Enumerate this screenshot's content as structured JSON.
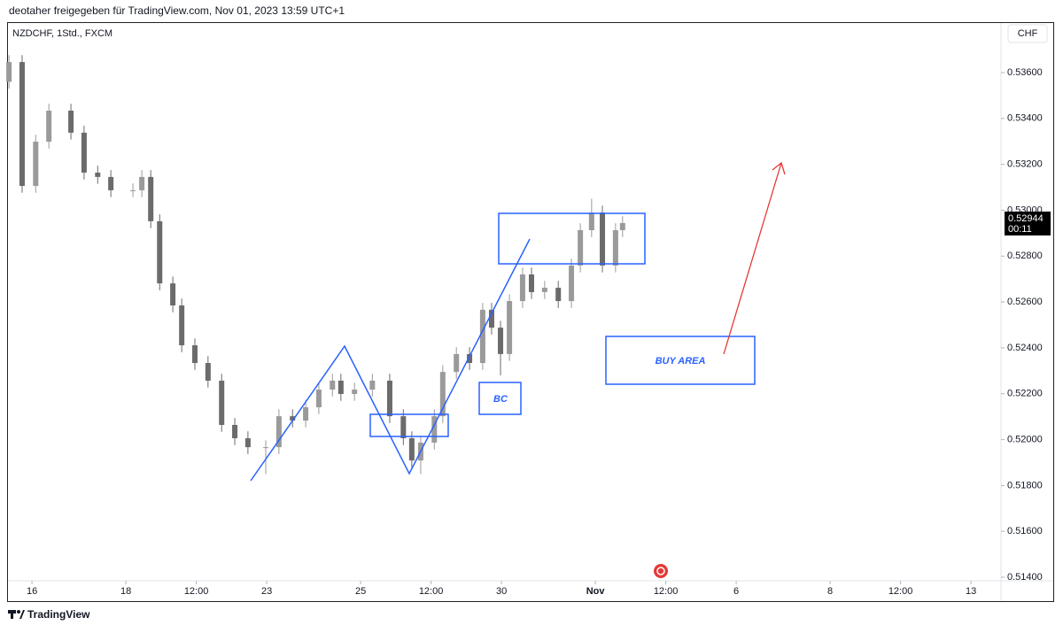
{
  "header": {
    "text": "deotaher freigegeben für TradingView.com, Nov 01, 2023 13:59 UTC+1"
  },
  "chart_data": {
    "type": "candlestick",
    "title": "NZDCHF, 1Std., FXCM",
    "currency": "CHF",
    "x": [
      -0.49,
      -0.21,
      0.08,
      0.36,
      0.83,
      1.11,
      1.4,
      1.68,
      2.15,
      2.34,
      2.53,
      2.72,
      3.0,
      3.19,
      3.47,
      3.75,
      4.04,
      4.32,
      4.6,
      4.98,
      5.26,
      5.55,
      5.83,
      6.11,
      6.4,
      6.58,
      6.87,
      7.25,
      7.62,
      7.91,
      8.09,
      8.28,
      8.57,
      8.75,
      9.04,
      9.32,
      9.6,
      9.79,
      9.98,
      10.17,
      10.45,
      10.64,
      10.92,
      11.21,
      11.49,
      11.68,
      11.92,
      12.15,
      12.43,
      12.58
    ],
    "open": [
      0.5356,
      0.53646,
      0.53106,
      0.53299,
      0.53434,
      0.53338,
      0.53164,
      0.53145,
      0.53087,
      0.53087,
      0.53145,
      0.52952,
      0.52681,
      0.52585,
      0.52411,
      0.52334,
      0.52257,
      0.52064,
      0.52006,
      0.51967,
      0.51967,
      0.52102,
      0.52083,
      0.52141,
      0.52218,
      0.52257,
      0.52199,
      0.52218,
      0.52257,
      0.52102,
      0.52006,
      0.51909,
      0.51987,
      0.52102,
      0.52295,
      0.52373,
      0.52334,
      0.52566,
      0.52488,
      0.52373,
      0.52604,
      0.5272,
      0.52643,
      0.52662,
      0.52604,
      0.52759,
      0.52913,
      0.5299,
      0.52759,
      0.52913
    ],
    "high": [
      0.53676,
      0.53676,
      0.53329,
      0.53464,
      0.53464,
      0.53368,
      0.53194,
      0.53175,
      0.53117,
      0.53175,
      0.53175,
      0.52982,
      0.52711,
      0.52615,
      0.52441,
      0.52364,
      0.52287,
      0.52094,
      0.52036,
      0.51997,
      0.52132,
      0.52132,
      0.52171,
      0.52248,
      0.52287,
      0.52287,
      0.52248,
      0.52287,
      0.52287,
      0.52132,
      0.52036,
      0.52017,
      0.52132,
      0.52325,
      0.52403,
      0.52403,
      0.52596,
      0.52596,
      0.52518,
      0.52634,
      0.5275,
      0.5275,
      0.52692,
      0.52692,
      0.52789,
      0.52943,
      0.5305,
      0.5302,
      0.52943,
      0.52974
    ],
    "low": [
      0.5353,
      0.53076,
      0.53076,
      0.53269,
      0.53308,
      0.53134,
      0.53115,
      0.53057,
      0.53057,
      0.53057,
      0.52922,
      0.52651,
      0.52555,
      0.52381,
      0.52304,
      0.52227,
      0.52034,
      0.51976,
      0.51937,
      0.5185,
      0.51937,
      0.52053,
      0.52053,
      0.52111,
      0.52188,
      0.52169,
      0.52169,
      0.52188,
      0.52072,
      0.51976,
      0.51879,
      0.5185,
      0.51957,
      0.52072,
      0.52265,
      0.52304,
      0.52304,
      0.52458,
      0.5228,
      0.52343,
      0.52574,
      0.52613,
      0.52613,
      0.52574,
      0.52574,
      0.52729,
      0.52883,
      0.52729,
      0.52729,
      0.52883
    ],
    "close": [
      0.53646,
      0.53106,
      0.53299,
      0.53434,
      0.53338,
      0.53164,
      0.53145,
      0.53087,
      0.53087,
      0.53145,
      0.52952,
      0.52681,
      0.52585,
      0.52411,
      0.52334,
      0.52257,
      0.52064,
      0.52006,
      0.51967,
      0.51967,
      0.52102,
      0.52083,
      0.52141,
      0.52218,
      0.52257,
      0.52199,
      0.52218,
      0.52257,
      0.52102,
      0.52006,
      0.51909,
      0.51987,
      0.52102,
      0.52295,
      0.52373,
      0.52334,
      0.52566,
      0.52488,
      0.52373,
      0.52604,
      0.5272,
      0.52643,
      0.52662,
      0.52604,
      0.52759,
      0.52913,
      0.5299,
      0.52759,
      0.52913,
      0.52944
    ],
    "up_color": "#9a9a9a",
    "down_color": "#6b6b6b",
    "xlim": [
      -0.53,
      20.64
    ],
    "xticks": [
      {
        "value": 0,
        "label": "16"
      },
      {
        "value": 2,
        "label": "18"
      },
      {
        "value": 3.5,
        "label": "12:00"
      },
      {
        "value": 5,
        "label": "23"
      },
      {
        "value": 7,
        "label": "25"
      },
      {
        "value": 8.5,
        "label": "12:00"
      },
      {
        "value": 10,
        "label": "30"
      },
      {
        "value": 12,
        "label": "Nov"
      },
      {
        "value": 13.5,
        "label": "12:00"
      },
      {
        "value": 15,
        "label": "6"
      },
      {
        "value": 17,
        "label": "8"
      },
      {
        "value": 18.5,
        "label": "12:00"
      },
      {
        "value": 20,
        "label": "13"
      }
    ],
    "ylim": [
      0.51292,
      0.5382
    ],
    "yticks": [
      {
        "value": 0.514,
        "label": "0.51400"
      },
      {
        "value": 0.516,
        "label": "0.51600"
      },
      {
        "value": 0.518,
        "label": "0.51800"
      },
      {
        "value": 0.52,
        "label": "0.52000"
      },
      {
        "value": 0.522,
        "label": "0.52200"
      },
      {
        "value": 0.524,
        "label": "0.52400"
      },
      {
        "value": 0.526,
        "label": "0.52600"
      },
      {
        "value": 0.528,
        "label": "0.52800"
      },
      {
        "value": 0.53,
        "label": "0.53000"
      },
      {
        "value": 0.532,
        "label": "0.53200"
      },
      {
        "value": 0.534,
        "label": "0.53400"
      },
      {
        "value": 0.536,
        "label": "0.53600"
      }
    ],
    "countdown": "00:11",
    "annotations": [
      "BC",
      "BUY AREA"
    ]
  },
  "footer": {
    "brand": "TradingView"
  }
}
